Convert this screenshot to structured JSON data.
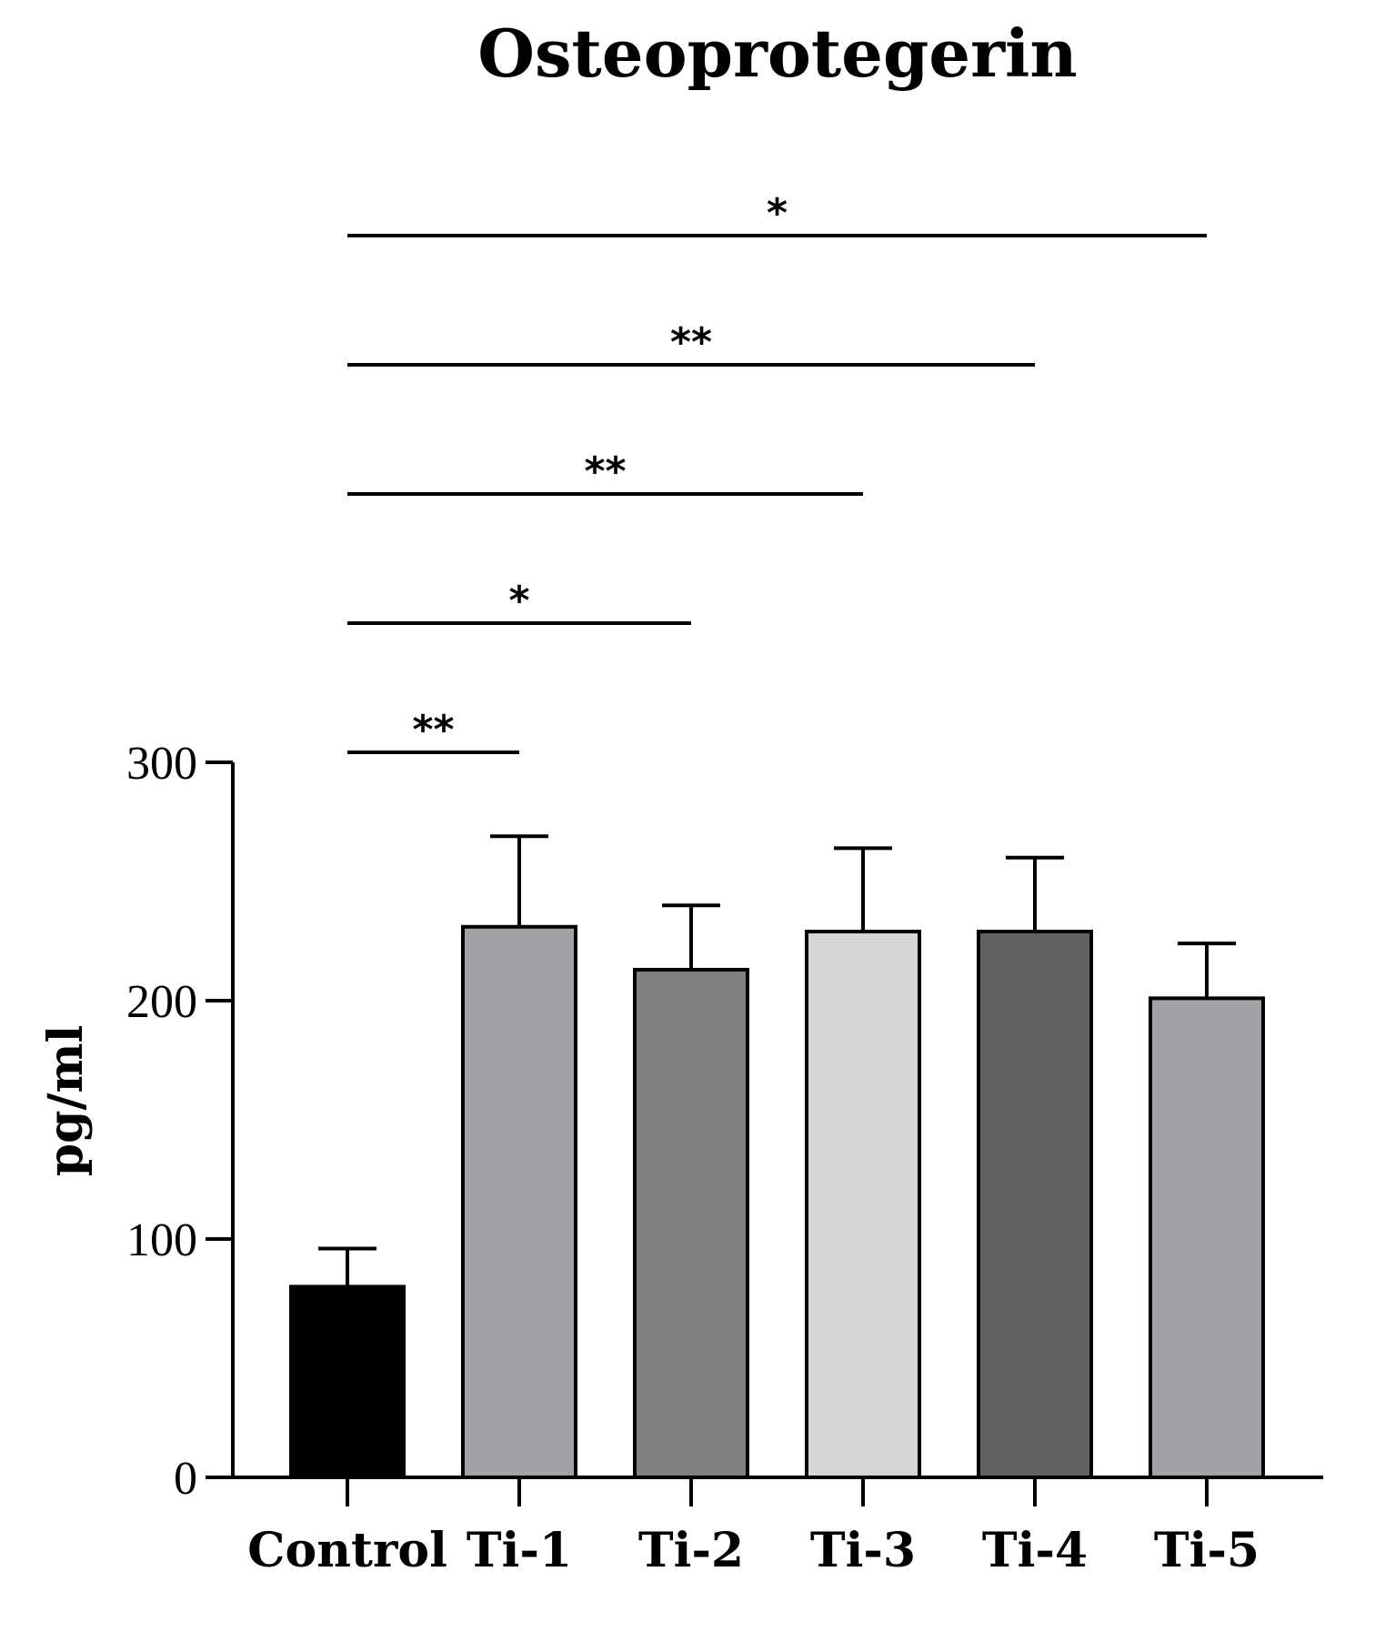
{
  "chart_data": {
    "type": "bar",
    "title": "Osteoprotegerin",
    "xlabel": "",
    "ylabel": "pg/ml",
    "ylim": [
      0,
      300
    ],
    "yticks": [
      "0",
      "100",
      "200",
      "300"
    ],
    "categories": [
      "Control",
      "Ti-1",
      "Ti-2",
      "Ti-3",
      "Ti-4",
      "Ti-5"
    ],
    "values": [
      80,
      231,
      213,
      229,
      229,
      201
    ],
    "error_upper": [
      96,
      269,
      240,
      264,
      260,
      224
    ],
    "colors": [
      "#000000",
      "#a2a2a6",
      "#808080",
      "#d6d6d6",
      "#626262",
      "#a2a2a6"
    ],
    "significance": [
      {
        "from": "Control",
        "to": "Ti-1",
        "label": "**"
      },
      {
        "from": "Control",
        "to": "Ti-2",
        "label": "*"
      },
      {
        "from": "Control",
        "to": "Ti-3",
        "label": "**"
      },
      {
        "from": "Control",
        "to": "Ti-4",
        "label": "**"
      },
      {
        "from": "Control",
        "to": "Ti-5",
        "label": "*"
      }
    ],
    "grid": false,
    "legend": "none"
  }
}
